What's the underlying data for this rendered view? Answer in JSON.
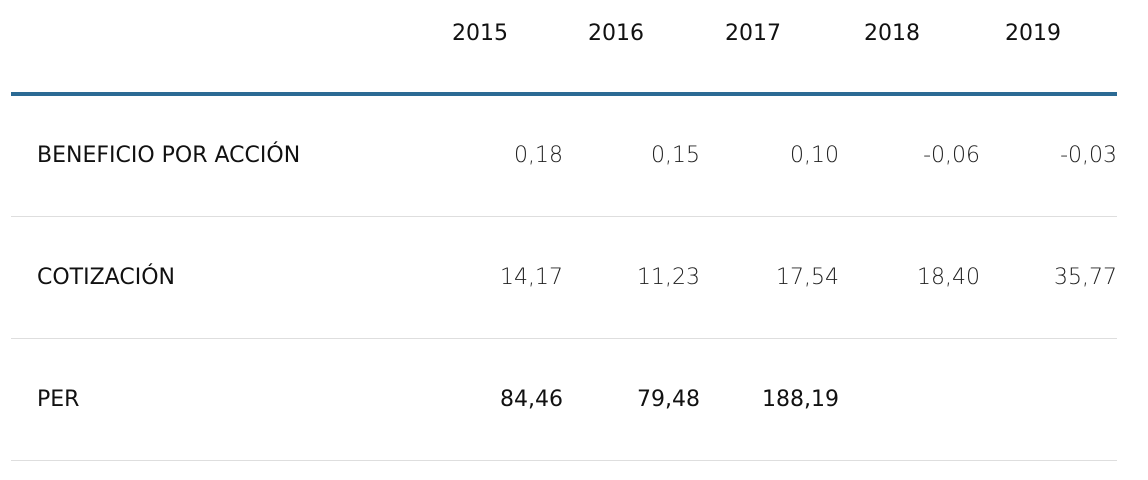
{
  "table": {
    "header": [
      "2015",
      "2016",
      "2017",
      "2018",
      "2019"
    ],
    "rows": [
      {
        "label": "BENEFICIO POR ACCIÓN",
        "values": [
          "0,18",
          "0,15",
          "0,10",
          "-0,06",
          "-0,03"
        ]
      },
      {
        "label": "COTIZACIÓN",
        "values": [
          "14,17",
          "11,23",
          "17,54",
          "18,40",
          "35,77"
        ]
      },
      {
        "label": "PER",
        "values": [
          "84,46",
          "79,48",
          "188,19"
        ]
      }
    ]
  }
}
